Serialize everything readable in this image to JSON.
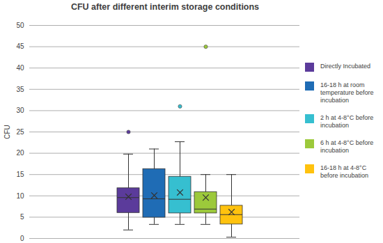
{
  "chart_data": {
    "type": "box",
    "title": "CFU after different interim storage conditions",
    "y_label": "CFU",
    "categories": [
      "Directly Incubated",
      "16-18 h at room temperature before incubation",
      "2 h at 4-8°C before incubation",
      "6 h at 4-8°C before incubation",
      "16-18 h at 4-8°C before incubation"
    ],
    "colors": [
      "#5b3b9b",
      "#1f6cb5",
      "#36bfd0",
      "#9cc93b",
      "#ffc20e"
    ],
    "min": [
      2,
      3.3,
      3.3,
      3.3,
      0.3
    ],
    "q1": [
      6,
      4.9,
      5.9,
      5.9,
      3.3
    ],
    "median": [
      9.6,
      9.3,
      9.2,
      6.9,
      5.6
    ],
    "q3": [
      11.8,
      16.3,
      14.5,
      10.9,
      7.7
    ],
    "max": [
      19.8,
      21,
      22.7,
      15,
      15
    ],
    "mean": [
      9.8,
      10.1,
      10.8,
      9.6,
      6.2
    ],
    "outliers": [
      [
        25
      ],
      [],
      [
        31
      ],
      [
        45
      ],
      []
    ],
    "marker": "x",
    "ylim": [
      0,
      50
    ],
    "yticks": [
      0,
      5,
      10,
      15,
      20,
      25,
      30,
      35,
      40,
      45,
      50
    ],
    "grid": true,
    "legend": "right",
    "tick_labels": "y"
  }
}
